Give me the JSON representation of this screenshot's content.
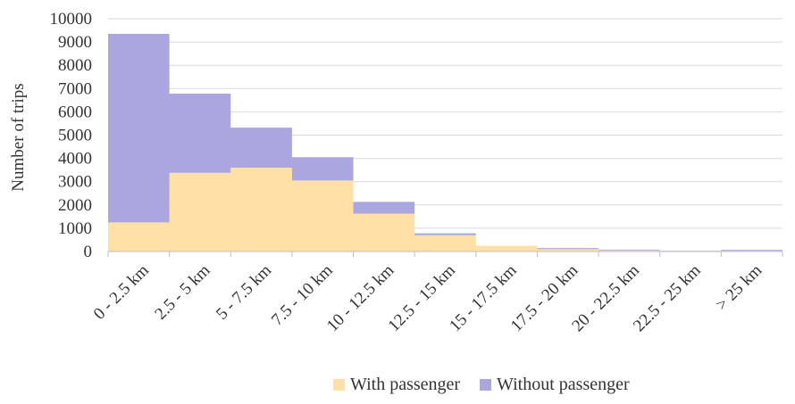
{
  "chart_data": {
    "type": "area",
    "subtype": "stacked-step",
    "title": "",
    "xlabel": "",
    "ylabel": "Number of trips",
    "ylim": [
      0,
      10000
    ],
    "yticks": [
      0,
      1000,
      2000,
      3000,
      4000,
      5000,
      6000,
      7000,
      8000,
      9000,
      10000
    ],
    "grid": true,
    "legend": "bottom-center",
    "categories": [
      "0 - 2.5 km",
      "2.5 - 5 km",
      "5 - 7.5 km",
      "7.5 - 10 km",
      "10 - 12.5 km",
      "12.5 - 15 km",
      "15 - 17.5 km",
      "17.5 - 20 km",
      "20 - 22.5 km",
      "22.5 - 25 km",
      "> 25 km"
    ],
    "series": [
      {
        "name": "With passenger",
        "color": "#FFE0A6",
        "values": [
          1250,
          3380,
          3600,
          3050,
          1630,
          700,
          250,
          100,
          50,
          20,
          30
        ]
      },
      {
        "name": "Without passenger",
        "color": "#A9A6E0",
        "values": [
          8100,
          3400,
          1720,
          1000,
          500,
          80,
          0,
          50,
          30,
          10,
          40
        ]
      }
    ]
  }
}
